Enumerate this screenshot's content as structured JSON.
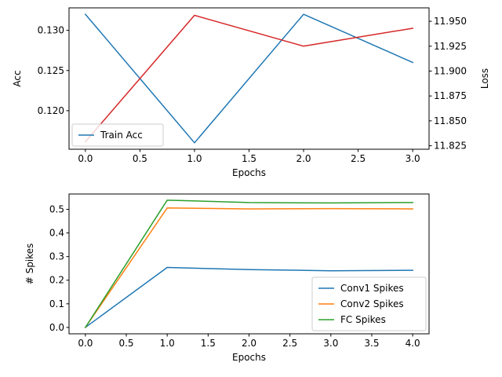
{
  "chart_data": [
    {
      "type": "line",
      "xlabel": "Epochs",
      "ylabel": "Acc",
      "ylabel_right": "Loss",
      "x": [
        0,
        1,
        2,
        3
      ],
      "xlim": [
        -0.15,
        3.15
      ],
      "xticks": [
        "0.0",
        "0.5",
        "1.0",
        "1.5",
        "2.0",
        "2.5",
        "3.0"
      ],
      "ylim": [
        0.1152,
        0.1328
      ],
      "yticks": [
        "0.120",
        "0.125",
        "0.130"
      ],
      "ylim_right": [
        11.8215,
        11.9635
      ],
      "yticks_right": [
        "11.825",
        "11.850",
        "11.875",
        "11.900",
        "11.925",
        "11.950"
      ],
      "legend": "lower-left",
      "grid": false,
      "series": [
        {
          "name": "Train Acc",
          "axis": "left",
          "color": "#1f77b4",
          "values": [
            0.132,
            0.116,
            0.132,
            0.126
          ]
        },
        {
          "axis": "right",
          "color": "#d62728",
          "values": [
            11.829,
            11.956,
            11.925,
            11.943
          ]
        }
      ]
    },
    {
      "type": "line",
      "xlabel": "Epochs",
      "ylabel": "# Spikes",
      "x": [
        0,
        1,
        2,
        3,
        4
      ],
      "xlim": [
        -0.2,
        4.2
      ],
      "xticks": [
        "0.0",
        "0.5",
        "1.0",
        "1.5",
        "2.0",
        "2.5",
        "3.0",
        "3.5",
        "4.0"
      ],
      "ylim": [
        -0.027,
        0.565
      ],
      "yticks": [
        "0.0",
        "0.1",
        "0.2",
        "0.3",
        "0.4",
        "0.5"
      ],
      "legend": "lower-right",
      "grid": false,
      "series": [
        {
          "name": "Conv1 Spikes",
          "color": "#1f77b4",
          "values": [
            0.0,
            0.254,
            0.245,
            0.24,
            0.242
          ]
        },
        {
          "name": "Conv2 Spikes",
          "color": "#ff7f0e",
          "values": [
            0.0,
            0.506,
            0.502,
            0.503,
            0.502
          ]
        },
        {
          "name": "FC Spikes",
          "color": "#2ca02c",
          "values": [
            0.0,
            0.539,
            0.529,
            0.527,
            0.529
          ]
        }
      ]
    }
  ]
}
